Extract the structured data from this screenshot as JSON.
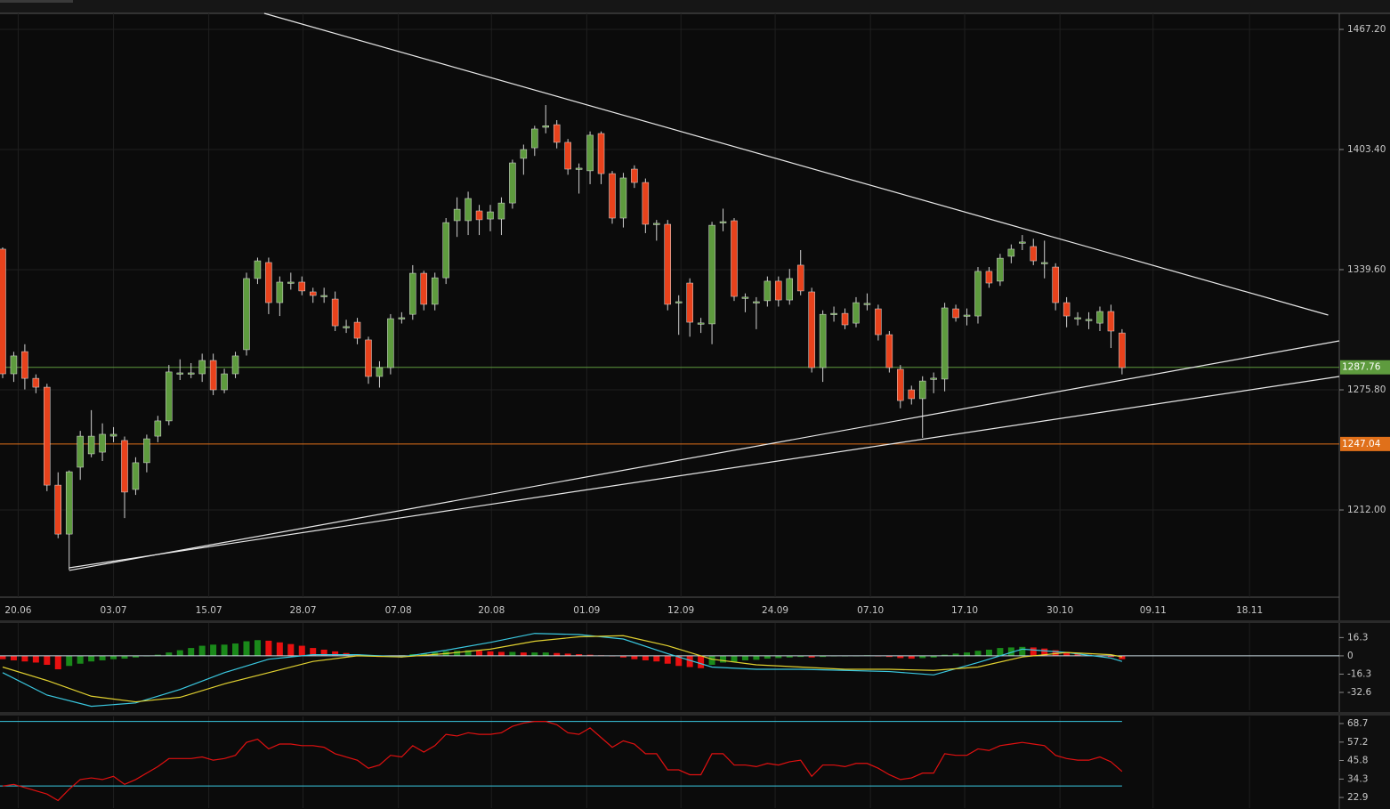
{
  "chart_data": [
    {
      "type": "candlestick",
      "xlim": [
        -0.24,
        120.6
      ],
      "xticks": [
        {
          "value": 1.4,
          "label": "20.06"
        },
        {
          "value": 10,
          "label": "03.07"
        },
        {
          "value": 18.6,
          "label": "15.07"
        },
        {
          "value": 27.1,
          "label": "28.07"
        },
        {
          "value": 35.7,
          "label": "07.08"
        },
        {
          "value": 44.1,
          "label": "20.08"
        },
        {
          "value": 52.7,
          "label": "01.09"
        },
        {
          "value": 61.2,
          "label": "12.09"
        },
        {
          "value": 69.7,
          "label": "24.09"
        },
        {
          "value": 78.3,
          "label": "07.10"
        },
        {
          "value": 86.8,
          "label": "17.10"
        },
        {
          "value": 95.4,
          "label": "30.10"
        },
        {
          "value": 103.8,
          "label": "09.11"
        },
        {
          "value": 112.5,
          "label": "18.11"
        }
      ],
      "ylim": [
        1165.7,
        1475.7
      ],
      "yticks": [
        {
          "value": 1467.2,
          "label": "1467.20"
        },
        {
          "value": 1403.4,
          "label": "1403.40"
        },
        {
          "value": 1339.6,
          "label": "1339.60"
        },
        {
          "value": 1275.8,
          "label": "1275.80"
        },
        {
          "value": 1212,
          "label": "1212.00"
        }
      ],
      "grid": true,
      "up_color": "#5e9b3e",
      "down_color": "#e8421c",
      "open": [
        1350.5,
        1284.3,
        1296.1,
        1281.9,
        1277.2,
        1225.2,
        1199.2,
        1234.7,
        1241.8,
        1242.7,
        1251.2,
        1248.9,
        1222.9,
        1237.1,
        1251.2,
        1259.3,
        1284.3,
        1284.3,
        1284.3,
        1291.4,
        1275.8,
        1284.3,
        1297.1,
        1334.9,
        1343.4,
        1322.1,
        1332.5,
        1333.0,
        1327.8,
        1325.4,
        1324.0,
        1308.9,
        1311.7,
        1302.3,
        1282.9,
        1287.6,
        1313.6,
        1315.9,
        1337.7,
        1321.2,
        1335.3,
        1365.6,
        1365.6,
        1370.8,
        1366.5,
        1366.5,
        1375.0,
        1398.7,
        1404.3,
        1415.2,
        1416.6,
        1407.2,
        1393.0,
        1392.1,
        1411.9,
        1390.6,
        1367.0,
        1393.0,
        1385.9,
        1363.7,
        1363.7,
        1322.1,
        1332.5,
        1310.8,
        1310.8,
        1364.6,
        1365.6,
        1324.5,
        1322.1,
        1323.1,
        1333.5,
        1323.5,
        1342.0,
        1327.8,
        1287.6,
        1315.9,
        1316.4,
        1311.2,
        1321.2,
        1318.8,
        1305.1,
        1286.7,
        1275.8,
        1271.1,
        1281.5,
        1281.5,
        1318.8,
        1315.0,
        1315.0,
        1338.7,
        1333.5,
        1346.7,
        1353.8,
        1351.9,
        1342.9,
        1341.0,
        1322.1,
        1313.6,
        1312.7,
        1311.2,
        1317.4,
        1306.0
      ],
      "high": [
        1351.4,
        1296,
        1300,
        1284,
        1279,
        1232,
        1233,
        1254,
        1265,
        1258,
        1256,
        1251,
        1240,
        1252,
        1262,
        1289,
        1292,
        1290,
        1295,
        1295,
        1287,
        1296,
        1338,
        1346,
        1346,
        1336,
        1338,
        1336,
        1330,
        1330,
        1328,
        1313,
        1314,
        1304,
        1291,
        1316,
        1317,
        1342,
        1339,
        1338,
        1367,
        1378,
        1381,
        1374,
        1374,
        1378,
        1398,
        1406,
        1416,
        1427,
        1419,
        1409,
        1396,
        1413,
        1413,
        1392,
        1391,
        1395,
        1388,
        1366,
        1366,
        1326,
        1335,
        1314,
        1365,
        1372,
        1367,
        1327,
        1325,
        1336,
        1336,
        1340,
        1350,
        1330,
        1318,
        1320,
        1319,
        1325,
        1327,
        1321,
        1307,
        1289,
        1278,
        1283,
        1285,
        1322,
        1321,
        1319,
        1341,
        1341,
        1348,
        1353,
        1358,
        1356,
        1355,
        1343,
        1325,
        1317,
        1317,
        1320,
        1321,
        1308
      ],
      "low": [
        1282,
        1280,
        1276,
        1274,
        1222,
        1197,
        1180.3,
        1228,
        1240,
        1238,
        1248,
        1207.7,
        1220,
        1232,
        1248,
        1257,
        1281,
        1282,
        1280,
        1273,
        1274,
        1282,
        1294,
        1332,
        1316,
        1315,
        1329,
        1326,
        1322,
        1322,
        1307,
        1306,
        1300,
        1279,
        1277,
        1284,
        1311,
        1313,
        1318,
        1318,
        1332,
        1357,
        1358,
        1358,
        1360,
        1358,
        1372,
        1390,
        1400,
        1412,
        1404,
        1390,
        1380,
        1385,
        1385,
        1364,
        1362,
        1383,
        1359,
        1355,
        1318,
        1305,
        1304,
        1306,
        1300,
        1360,
        1323,
        1317,
        1308,
        1320,
        1320,
        1321,
        1326,
        1285,
        1280,
        1312,
        1308,
        1309,
        1318,
        1302,
        1285,
        1266,
        1268,
        1250.3,
        1274,
        1275,
        1312,
        1310,
        1311,
        1330,
        1331,
        1343,
        1350,
        1342,
        1335,
        1318,
        1309,
        1310,
        1308,
        1307,
        1298,
        1284
      ],
      "close": [
        1284.3,
        1293.8,
        1281.9,
        1277.2,
        1225.2,
        1199.2,
        1232.3,
        1251.2,
        1251.2,
        1252.2,
        1252.2,
        1221.5,
        1237.1,
        1249.8,
        1259.3,
        1285.3,
        1284.8,
        1284.8,
        1291.4,
        1275.8,
        1284.3,
        1293.8,
        1334.9,
        1344.3,
        1322.1,
        1333.0,
        1333.0,
        1328.3,
        1325.9,
        1325.9,
        1309.8,
        1309.4,
        1303.2,
        1282.9,
        1287.6,
        1313.6,
        1314.1,
        1337.7,
        1321.2,
        1335.3,
        1364.6,
        1371.7,
        1377.4,
        1366.1,
        1370.3,
        1375.0,
        1396.3,
        1403.4,
        1414.3,
        1416.0,
        1407.2,
        1393.0,
        1393.5,
        1411.0,
        1390.6,
        1367.0,
        1388.3,
        1385.9,
        1363.7,
        1364.2,
        1321.2,
        1322.6,
        1311.7,
        1311.3,
        1363.2,
        1365.1,
        1325.4,
        1325.0,
        1322.6,
        1333.5,
        1323.5,
        1334.9,
        1328.3,
        1287.6,
        1315.9,
        1316.4,
        1310.3,
        1322.1,
        1321.7,
        1305.1,
        1287.6,
        1270.1,
        1271.1,
        1280.5,
        1282.0,
        1319.3,
        1314.1,
        1315.5,
        1338.7,
        1332.5,
        1345.7,
        1350.5,
        1354.3,
        1344.3,
        1343.4,
        1322.1,
        1315.0,
        1314.1,
        1313.2,
        1317.4,
        1307.0,
        1287.6
      ],
      "hlines": [
        {
          "value": 1287.76,
          "color": "#5e9b3e"
        },
        {
          "value": 1247.04,
          "color": "#e0701a"
        }
      ],
      "trendlines": [
        {
          "x": [
            23.6,
            119.6
          ],
          "y": [
            1475.7,
            1315.5
          ],
          "color": "#e8e8e8"
        },
        {
          "x": [
            6.0,
            120.6
          ],
          "y": [
            1179.9,
            1301.8
          ],
          "color": "#e8e8e8"
        },
        {
          "x": [
            6.0,
            120.6
          ],
          "y": [
            1181.3,
            1282.9
          ],
          "color": "#e8e8e8"
        }
      ]
    },
    {
      "type": "macd",
      "ylim": [
        -48.5,
        29.3
      ],
      "yticks": [
        16.3,
        0,
        -16.3,
        -32.6
      ],
      "zero_line_color": "#c8d8e0",
      "hist_up_color": "#1a8a1a",
      "hist_down_color": "#e81010",
      "histogram": [
        -3,
        -4,
        -5,
        -6,
        -8,
        -12,
        -9,
        -7,
        -5,
        -4,
        -3,
        -2.5,
        -1.5,
        -0.5,
        1,
        3,
        5,
        7,
        9,
        10,
        10,
        11,
        13,
        14,
        13.5,
        12,
        10.5,
        9,
        7,
        5.5,
        4,
        2.5,
        1.5,
        -0.5,
        -1,
        -0.5,
        0.5,
        1.5,
        2,
        3,
        4,
        4.5,
        5,
        4.5,
        4,
        3.5,
        3.5,
        3,
        3,
        3,
        2.5,
        2,
        1.5,
        1,
        0.5,
        -0.5,
        -1.5,
        -3,
        -4,
        -5,
        -7,
        -9,
        -10,
        -11,
        -8,
        -6,
        -5.5,
        -4,
        -3.5,
        -2.5,
        -2,
        -1.5,
        -1,
        -1.5,
        -1,
        -0.5,
        -0.5,
        0,
        0.5,
        -0.5,
        -1,
        -2,
        -2.5,
        -2,
        -1.5,
        1,
        2,
        3,
        4.5,
        5.5,
        7,
        7.5,
        8,
        7.5,
        6.5,
        5,
        3.5,
        2,
        1,
        0,
        -1,
        -3
      ],
      "x": [
        0,
        4,
        8,
        12,
        16,
        20,
        24,
        28,
        32,
        36,
        40,
        44,
        48,
        52,
        56,
        60,
        64,
        68,
        72,
        76,
        80,
        84,
        88,
        92,
        96,
        100,
        101
      ],
      "lines": [
        {
          "color": "#3ac8e0",
          "values": [
            -15,
            -35,
            -45,
            -42,
            -30,
            -15,
            -3,
            1,
            1,
            -1,
            5,
            12,
            20,
            19,
            15,
            2,
            -10,
            -12,
            -12,
            -13,
            -14,
            -17,
            -6,
            6,
            3,
            -2,
            -5
          ]
        },
        {
          "color": "#e0d030",
          "values": [
            -10,
            -22,
            -36,
            -41,
            -37,
            -25,
            -15,
            -5,
            0,
            -1,
            2,
            6,
            13,
            17,
            18,
            9,
            -3,
            -8,
            -10,
            -12,
            -12,
            -13,
            -10,
            -1,
            3,
            1,
            -1
          ]
        }
      ]
    },
    {
      "type": "line",
      "ylim": [
        16.3,
        73.1
      ],
      "yticks": [
        68.7,
        57.2,
        45.8,
        34.3,
        22.9
      ],
      "color": "#e01010",
      "levels": [
        70,
        30
      ],
      "level_color": "#3ac8e0",
      "values": [
        30,
        31,
        29,
        27,
        25,
        21,
        28,
        34,
        35,
        34,
        36,
        31,
        34,
        38,
        42,
        47,
        47,
        47,
        48,
        46,
        47,
        49,
        57,
        59,
        53,
        56,
        56,
        55,
        55,
        54,
        50,
        48,
        46,
        41,
        43,
        49,
        48,
        55,
        51,
        55,
        62,
        61,
        63,
        62,
        62,
        63,
        67,
        69,
        70,
        70,
        68,
        63,
        62,
        66,
        60,
        54,
        58,
        56,
        50,
        50,
        40,
        40,
        37,
        37,
        50,
        50,
        43,
        43,
        42,
        44,
        43,
        45,
        46,
        36,
        43,
        43,
        42,
        44,
        44,
        41,
        37,
        34,
        35,
        38,
        38,
        50,
        49,
        49,
        53,
        52,
        55,
        56,
        57,
        56,
        55,
        49,
        47,
        46,
        46,
        48,
        45,
        39
      ]
    }
  ]
}
